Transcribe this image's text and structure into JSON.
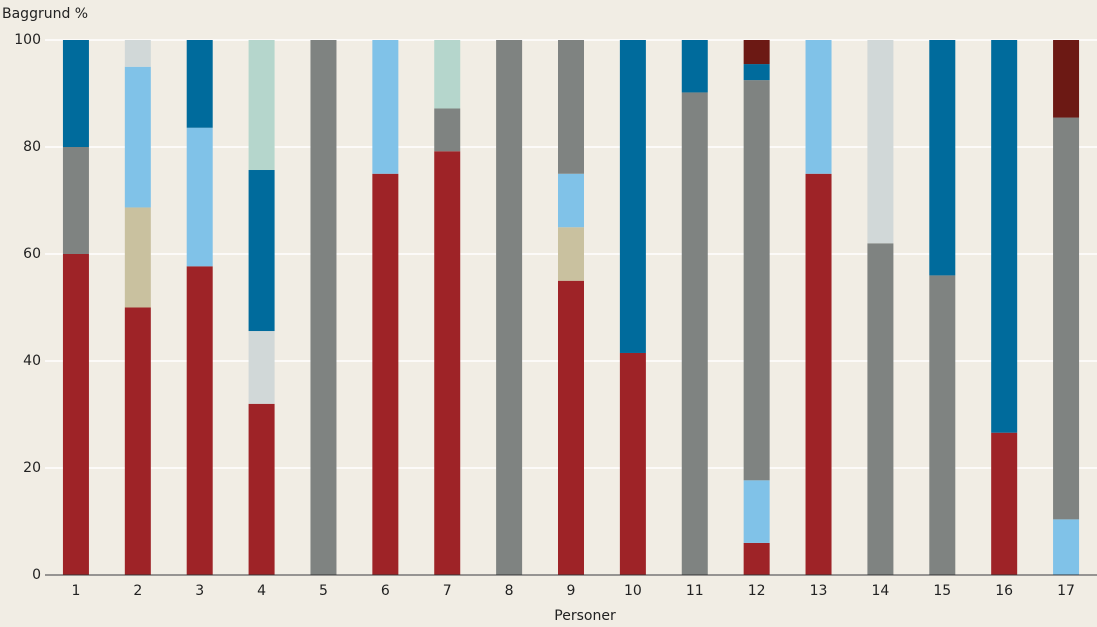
{
  "chart_data": {
    "type": "stacked_bar",
    "y_label": "Baggrund %",
    "x_label": "Personer",
    "categories": [
      "1",
      "2",
      "3",
      "4",
      "5",
      "6",
      "7",
      "8",
      "9",
      "10",
      "11",
      "12",
      "13",
      "14",
      "15",
      "16",
      "17"
    ],
    "series": [
      {
        "color": "#9e2327",
        "values": [
          60,
          50,
          57.7,
          32,
          0,
          75,
          79.2,
          0,
          55,
          41.5,
          0,
          6,
          75,
          0,
          0,
          26.6,
          0
        ]
      },
      {
        "color": "#c9c19f",
        "values": [
          0,
          18.7,
          0,
          0,
          0,
          0,
          0,
          0,
          10,
          0,
          0,
          0,
          0,
          0,
          0,
          0,
          0
        ]
      },
      {
        "color": "#80c2e8",
        "values": [
          0,
          26.3,
          25.9,
          0,
          0,
          25,
          0,
          0,
          10,
          0,
          0,
          11.7,
          25,
          0,
          0,
          0,
          10.4
        ]
      },
      {
        "color": "#7f8381",
        "values": [
          20,
          0,
          0,
          0,
          100,
          0,
          8,
          100,
          25,
          0,
          90.2,
          74.8,
          0,
          62,
          56,
          0,
          75.1
        ]
      },
      {
        "color": "#d1d8d8",
        "values": [
          0,
          5,
          0,
          13.6,
          0,
          0,
          0,
          0,
          0,
          0,
          0,
          0,
          0,
          38,
          0,
          0,
          0
        ]
      },
      {
        "color": "#006b9c",
        "values": [
          20,
          0,
          16.4,
          30.1,
          0,
          0,
          0,
          0,
          0,
          58.5,
          9.8,
          3,
          0,
          0,
          44,
          73.4,
          0
        ]
      },
      {
        "color": "#b5d6cc",
        "values": [
          0,
          0,
          0,
          24.3,
          0,
          0,
          12.8,
          0,
          0,
          0,
          0,
          0,
          0,
          0,
          0,
          0,
          0
        ]
      },
      {
        "color": "#6c1914",
        "values": [
          0,
          0,
          0,
          0,
          0,
          0,
          0,
          0,
          0,
          0,
          0,
          4.5,
          0,
          0,
          0,
          0,
          14.5
        ]
      }
    ],
    "ylim": [
      0,
      100
    ],
    "yticks": [
      0,
      20,
      40,
      60,
      80,
      100
    ],
    "grid": true
  }
}
